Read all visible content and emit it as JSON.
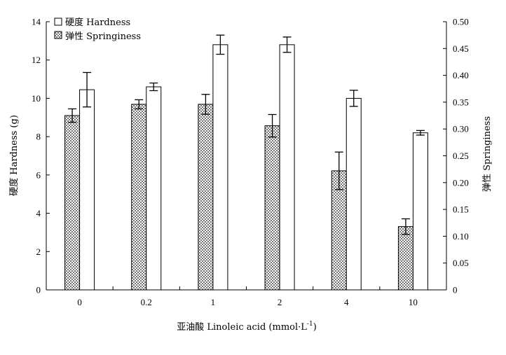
{
  "chart_data": {
    "type": "bar",
    "categories": [
      "0",
      "0.2",
      "1",
      "2",
      "4",
      "10"
    ],
    "xlabel": "亚油酸 Linoleic acid (mmol·L",
    "xlabel_sup": "-1",
    "xlabel_end": ")",
    "ylabel_left": "硬度 Hardness (g)",
    "ylabel_right": "弹性  Springiness",
    "ylim_left": [
      0,
      14
    ],
    "yticks_left": [
      "0",
      "2",
      "4",
      "6",
      "8",
      "10",
      "12",
      "14"
    ],
    "ylim_right": [
      0,
      0.5
    ],
    "yticks_right": [
      "0",
      "0.05",
      "0.10",
      "0.15",
      "0.20",
      "0.25",
      "0.30",
      "0.35",
      "0.40",
      "0.45",
      "0.50"
    ],
    "grid": false,
    "legend_position": "top-left",
    "series": [
      {
        "name": "弹性 Springiness",
        "axis": "right",
        "fill": "checkered",
        "values": [
          0.325,
          0.346,
          0.346,
          0.306,
          0.222,
          0.118
        ],
        "errors": [
          0.0125,
          0.0085,
          0.0185,
          0.021,
          0.035,
          0.0145
        ]
      },
      {
        "name": "硬度 Hardness",
        "axis": "left",
        "fill": "white",
        "values": [
          10.45,
          10.6,
          12.8,
          12.8,
          10.0,
          8.2
        ],
        "errors": [
          0.9,
          0.2,
          0.5,
          0.4,
          0.42,
          0.12
        ]
      }
    ]
  },
  "colors": {
    "axis": "#000000",
    "bar_stroke": "#000000",
    "open_fill": "#ffffff",
    "check_dark": "#777777",
    "check_light": "#ffffff"
  }
}
